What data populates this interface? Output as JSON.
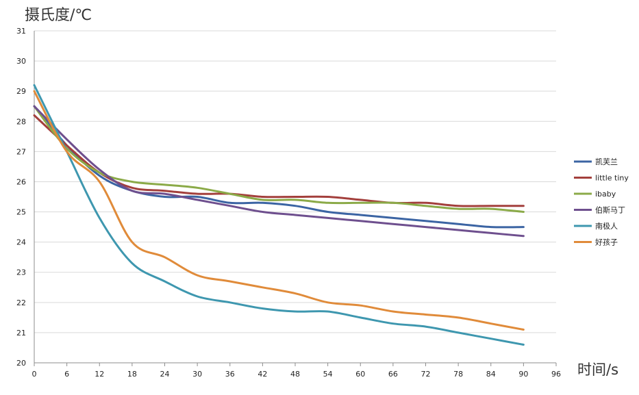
{
  "chart_data": {
    "type": "line",
    "ylabel": "摄氏度/℃",
    "xlabel": "时间/s",
    "xlim": [
      0,
      96
    ],
    "ylim": [
      20,
      31
    ],
    "xticks": [
      0,
      6,
      12,
      18,
      24,
      30,
      36,
      42,
      48,
      54,
      60,
      66,
      72,
      78,
      84,
      90,
      96
    ],
    "yticks": [
      20,
      21,
      22,
      23,
      24,
      25,
      26,
      27,
      28,
      29,
      30,
      31
    ],
    "grid": "horizontal",
    "legend": "right",
    "series": [
      {
        "name": "凯芙兰",
        "color": "#3B64A3",
        "x": [
          0,
          6,
          12,
          18,
          24,
          30,
          36,
          42,
          48,
          54,
          60,
          66,
          72,
          78,
          84,
          90
        ],
        "y": [
          28.5,
          27.2,
          26.2,
          25.7,
          25.5,
          25.5,
          25.3,
          25.3,
          25.2,
          25.0,
          24.9,
          24.8,
          24.7,
          24.6,
          24.5,
          24.5
        ]
      },
      {
        "name": "little tiny",
        "color": "#A33F3C",
        "x": [
          0,
          6,
          12,
          18,
          24,
          30,
          36,
          42,
          48,
          54,
          60,
          66,
          72,
          78,
          84,
          90
        ],
        "y": [
          28.2,
          27.2,
          26.3,
          25.8,
          25.7,
          25.6,
          25.6,
          25.5,
          25.5,
          25.5,
          25.4,
          25.3,
          25.3,
          25.2,
          25.2,
          25.2
        ]
      },
      {
        "name": "ibaby",
        "color": "#8BAA48",
        "x": [
          0,
          6,
          12,
          18,
          24,
          30,
          36,
          42,
          48,
          54,
          60,
          66,
          72,
          78,
          84,
          90
        ],
        "y": [
          28.5,
          27.1,
          26.3,
          26.0,
          25.9,
          25.8,
          25.6,
          25.4,
          25.4,
          25.3,
          25.3,
          25.3,
          25.2,
          25.1,
          25.1,
          25.0
        ]
      },
      {
        "name": "伯斯马丁",
        "color": "#6E4F8E",
        "x": [
          0,
          6,
          12,
          18,
          24,
          30,
          36,
          42,
          48,
          54,
          60,
          66,
          72,
          78,
          84,
          90
        ],
        "y": [
          28.5,
          27.4,
          26.4,
          25.7,
          25.6,
          25.4,
          25.2,
          25.0,
          24.9,
          24.8,
          24.7,
          24.6,
          24.5,
          24.4,
          24.3,
          24.2
        ]
      },
      {
        "name": "南极人",
        "color": "#3E97AF",
        "x": [
          0,
          6,
          12,
          18,
          24,
          30,
          36,
          42,
          48,
          54,
          60,
          66,
          72,
          78,
          84,
          90
        ],
        "y": [
          29.2,
          27.0,
          24.8,
          23.3,
          22.7,
          22.2,
          22.0,
          21.8,
          21.7,
          21.7,
          21.5,
          21.3,
          21.2,
          21.0,
          20.8,
          20.6
        ]
      },
      {
        "name": "好孩子",
        "color": "#E08B3A",
        "x": [
          0,
          6,
          12,
          18,
          24,
          30,
          36,
          42,
          48,
          54,
          60,
          66,
          72,
          78,
          84,
          90
        ],
        "y": [
          29.0,
          27.0,
          26.0,
          24.0,
          23.5,
          22.9,
          22.7,
          22.5,
          22.3,
          22.0,
          21.9,
          21.7,
          21.6,
          21.5,
          21.3,
          21.1
        ]
      }
    ]
  }
}
